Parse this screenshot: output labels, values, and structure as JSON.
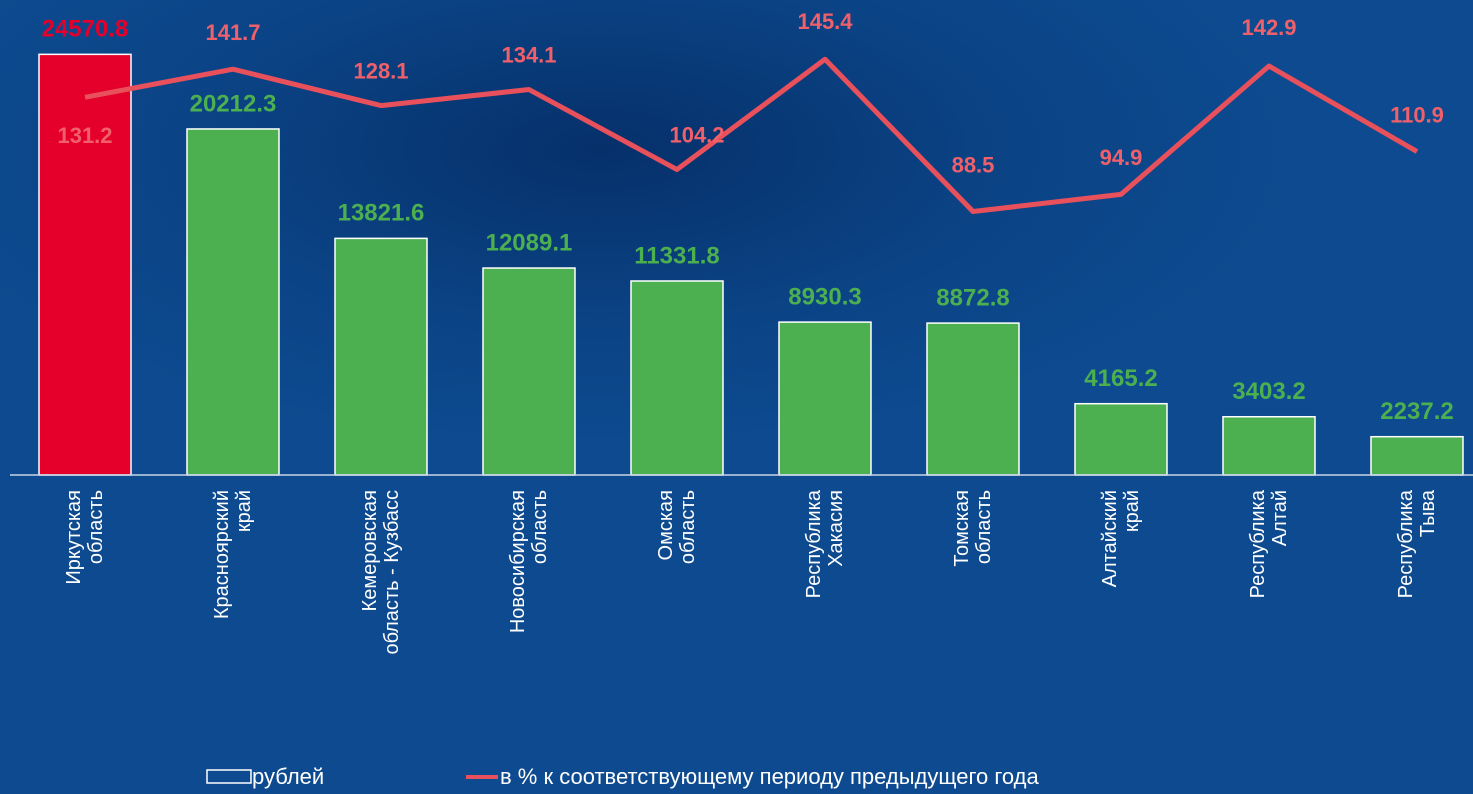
{
  "chart_data": {
    "type": "bar_line",
    "categories": [
      "Иркутская\nобласть",
      "Красноярский\nкрай",
      "Кемеровская\nобласть - Кузбасс",
      "Новосибирская\nобласть",
      "Омская\nобласть",
      "Республика\nХакасия",
      "Томская\nобласть",
      "Алтайский\nкрай",
      "Республика\nАлтай",
      "Республика\nТыва"
    ],
    "series": [
      {
        "name": "рублей",
        "type": "bar",
        "color": "#4caf50",
        "highlight_color": "#e4002b",
        "label_color": "#4caf50",
        "highlight_label_color": "#e4002b",
        "values": [
          24570.8,
          20212.3,
          13821.6,
          12089.1,
          11331.8,
          8930.3,
          8872.8,
          4165.2,
          3403.2,
          2237.2
        ]
      },
      {
        "name": "в % к соответствующему периоду предыдущего года",
        "type": "line",
        "axis": "y2",
        "color": "#e8505b",
        "label_color": "#f0606a",
        "values": [
          131.2,
          141.7,
          128.1,
          134.1,
          104.2,
          145.4,
          88.5,
          94.9,
          142.9,
          110.9
        ]
      }
    ],
    "ylim": [
      0,
      25000
    ],
    "y2lim": [
      -10,
      150
    ],
    "grid": false
  }
}
